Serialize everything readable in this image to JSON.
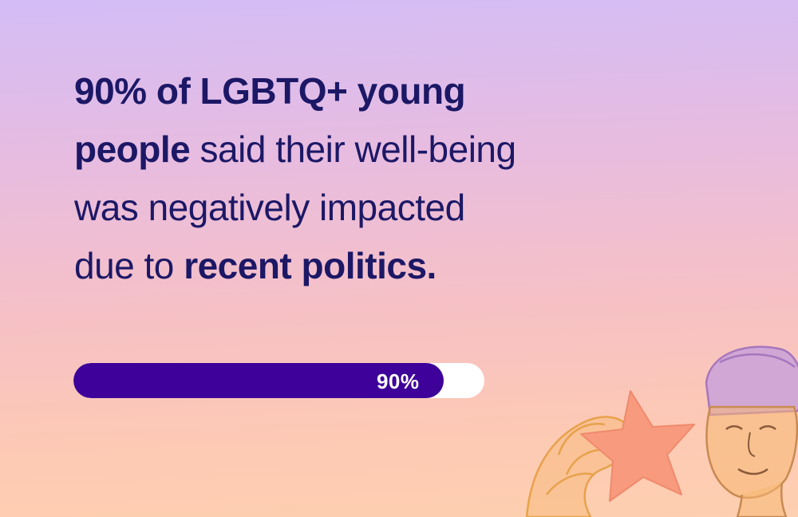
{
  "headline": {
    "line1_bold": "90% of LGBTQ+ young",
    "line2_bold": "people",
    "line2_rest": " said their well-being",
    "line3": "was negatively impacted",
    "line4_start": "due to ",
    "line4_bold": "recent politics."
  },
  "progress": {
    "value": 90,
    "label": "90%",
    "fill_color": "#3e0199",
    "track_color": "#ffffff"
  },
  "illustration": {
    "icon": "person-holding-star-illustration"
  },
  "colors": {
    "text": "#1c1866",
    "bg_top": "#d3bdf6",
    "bg_bottom": "#fecfb0"
  }
}
